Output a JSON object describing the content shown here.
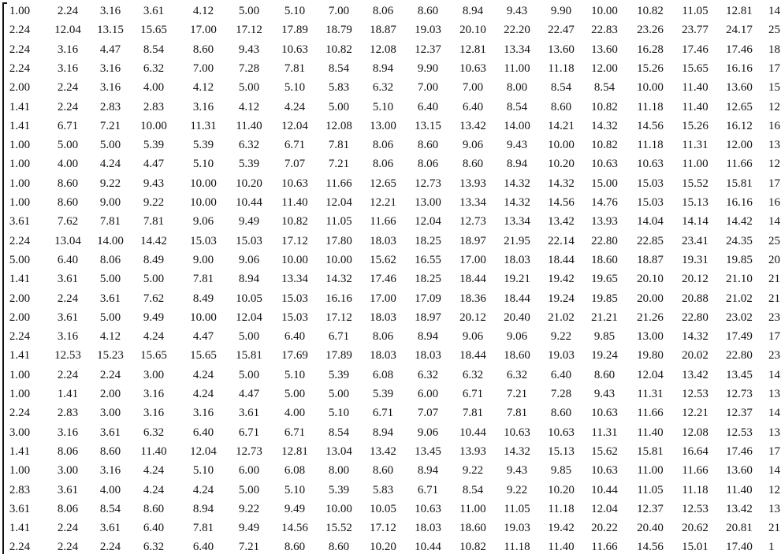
{
  "matrix": {
    "rows": [
      [
        "1.00",
        "2.24",
        "3.16",
        "3.61",
        "4.12",
        "5.00",
        "5.10",
        "7.00",
        "8.06",
        "8.60",
        "8.94",
        "9.43",
        "9.90",
        "10.00",
        "10.82",
        "11.05",
        "12.81",
        "14"
      ],
      [
        "2.24",
        "12.04",
        "13.15",
        "15.65",
        "17.00",
        "17.12",
        "17.89",
        "18.79",
        "18.87",
        "19.03",
        "20.10",
        "22.20",
        "22.47",
        "22.83",
        "23.26",
        "23.77",
        "24.17",
        "25"
      ],
      [
        "2.24",
        "3.16",
        "4.47",
        "8.54",
        "8.60",
        "9.43",
        "10.63",
        "10.82",
        "12.08",
        "12.37",
        "12.81",
        "13.34",
        "13.60",
        "13.60",
        "16.28",
        "17.46",
        "17.46",
        "18"
      ],
      [
        "2.24",
        "3.16",
        "3.16",
        "6.32",
        "7.00",
        "7.28",
        "7.81",
        "8.54",
        "8.94",
        "9.90",
        "10.63",
        "11.00",
        "11.18",
        "12.00",
        "15.26",
        "15.65",
        "16.16",
        "17"
      ],
      [
        "2.00",
        "2.24",
        "3.16",
        "4.00",
        "4.12",
        "5.00",
        "5.10",
        "5.83",
        "6.32",
        "7.00",
        "7.00",
        "8.00",
        "8.54",
        "8.54",
        "10.00",
        "11.40",
        "13.60",
        "15"
      ],
      [
        "1.41",
        "2.24",
        "2.83",
        "2.83",
        "3.16",
        "4.12",
        "4.24",
        "5.00",
        "5.10",
        "6.40",
        "6.40",
        "8.54",
        "8.60",
        "10.82",
        "11.18",
        "11.40",
        "12.65",
        "12"
      ],
      [
        "1.41",
        "6.71",
        "7.21",
        "10.00",
        "11.31",
        "11.40",
        "12.04",
        "12.08",
        "13.00",
        "13.15",
        "13.42",
        "14.00",
        "14.21",
        "14.32",
        "14.56",
        "15.26",
        "16.12",
        "16"
      ],
      [
        "1.00",
        "5.00",
        "5.00",
        "5.39",
        "5.39",
        "6.32",
        "6.71",
        "7.81",
        "8.06",
        "8.60",
        "9.06",
        "9.43",
        "10.00",
        "10.82",
        "11.18",
        "11.31",
        "12.00",
        "13"
      ],
      [
        "1.00",
        "4.00",
        "4.24",
        "4.47",
        "5.10",
        "5.39",
        "7.07",
        "7.21",
        "8.06",
        "8.06",
        "8.60",
        "8.94",
        "10.20",
        "10.63",
        "10.63",
        "11.00",
        "11.66",
        "12"
      ],
      [
        "1.00",
        "8.60",
        "9.22",
        "9.43",
        "10.00",
        "10.20",
        "10.63",
        "11.66",
        "12.65",
        "12.73",
        "13.93",
        "14.32",
        "14.32",
        "15.00",
        "15.03",
        "15.52",
        "15.81",
        "17"
      ],
      [
        "1.00",
        "8.60",
        "9.00",
        "9.22",
        "10.00",
        "10.44",
        "11.40",
        "12.04",
        "12.21",
        "13.00",
        "13.34",
        "14.32",
        "14.56",
        "14.76",
        "15.03",
        "15.13",
        "16.16",
        "16"
      ],
      [
        "3.61",
        "7.62",
        "7.81",
        "7.81",
        "9.06",
        "9.49",
        "10.82",
        "11.05",
        "11.66",
        "12.04",
        "12.73",
        "13.34",
        "13.42",
        "13.93",
        "14.04",
        "14.14",
        "14.42",
        "14"
      ],
      [
        "2.24",
        "13.04",
        "14.00",
        "14.42",
        "15.03",
        "15.03",
        "17.12",
        "17.80",
        "18.03",
        "18.25",
        "18.97",
        "21.95",
        "22.14",
        "22.80",
        "22.85",
        "23.41",
        "24.35",
        "25"
      ],
      [
        "5.00",
        "6.40",
        "8.06",
        "8.49",
        "9.00",
        "9.06",
        "10.00",
        "10.00",
        "15.62",
        "16.55",
        "17.00",
        "18.03",
        "18.44",
        "18.60",
        "18.87",
        "19.31",
        "19.85",
        "20"
      ],
      [
        "1.41",
        "3.61",
        "5.00",
        "5.00",
        "7.81",
        "8.94",
        "13.34",
        "14.32",
        "17.46",
        "18.25",
        "18.44",
        "19.21",
        "19.42",
        "19.65",
        "20.10",
        "20.12",
        "21.10",
        "21"
      ],
      [
        "2.00",
        "2.24",
        "3.61",
        "7.62",
        "8.49",
        "10.05",
        "15.03",
        "16.16",
        "17.00",
        "17.09",
        "18.36",
        "18.44",
        "19.24",
        "19.85",
        "20.00",
        "20.88",
        "21.02",
        "21"
      ],
      [
        "2.00",
        "3.61",
        "5.00",
        "9.49",
        "10.00",
        "12.04",
        "15.03",
        "17.12",
        "18.03",
        "18.97",
        "20.12",
        "20.40",
        "21.02",
        "21.21",
        "21.26",
        "22.80",
        "23.02",
        "23"
      ],
      [
        "2.24",
        "3.16",
        "4.12",
        "4.24",
        "4.47",
        "5.00",
        "6.40",
        "6.71",
        "8.06",
        "8.94",
        "9.06",
        "9.06",
        "9.22",
        "9.85",
        "13.00",
        "14.32",
        "17.49",
        "17"
      ],
      [
        "1.41",
        "12.53",
        "15.23",
        "15.65",
        "15.65",
        "15.81",
        "17.69",
        "17.89",
        "18.03",
        "18.03",
        "18.44",
        "18.60",
        "19.03",
        "19.24",
        "19.80",
        "20.02",
        "22.80",
        "23"
      ],
      [
        "1.00",
        "2.24",
        "2.24",
        "3.00",
        "4.24",
        "5.00",
        "5.10",
        "5.39",
        "6.08",
        "6.32",
        "6.32",
        "6.32",
        "6.40",
        "8.60",
        "12.04",
        "13.42",
        "13.45",
        "14"
      ],
      [
        "1.00",
        "1.41",
        "2.00",
        "3.16",
        "4.24",
        "4.47",
        "5.00",
        "5.00",
        "5.39",
        "6.00",
        "6.71",
        "7.21",
        "7.28",
        "9.43",
        "11.31",
        "12.53",
        "12.73",
        "13"
      ],
      [
        "2.24",
        "2.83",
        "3.00",
        "3.16",
        "3.16",
        "3.61",
        "4.00",
        "5.10",
        "6.71",
        "7.07",
        "7.81",
        "7.81",
        "8.60",
        "10.63",
        "11.66",
        "12.21",
        "12.37",
        "14"
      ],
      [
        "3.00",
        "3.16",
        "3.61",
        "6.32",
        "6.40",
        "6.71",
        "6.71",
        "8.54",
        "8.94",
        "9.06",
        "10.44",
        "10.63",
        "10.63",
        "11.31",
        "11.40",
        "12.08",
        "12.53",
        "13"
      ],
      [
        "1.41",
        "8.06",
        "8.60",
        "11.40",
        "12.04",
        "12.73",
        "12.81",
        "13.04",
        "13.42",
        "13.45",
        "13.93",
        "14.32",
        "15.13",
        "15.62",
        "15.81",
        "16.64",
        "17.46",
        "17"
      ],
      [
        "1.00",
        "3.00",
        "3.16",
        "4.24",
        "5.10",
        "6.00",
        "6.08",
        "8.00",
        "8.60",
        "8.94",
        "9.22",
        "9.43",
        "9.85",
        "10.63",
        "11.00",
        "11.66",
        "13.60",
        "14"
      ],
      [
        "2.83",
        "3.61",
        "4.00",
        "4.24",
        "4.24",
        "5.00",
        "5.10",
        "5.39",
        "5.83",
        "6.71",
        "8.54",
        "9.22",
        "10.20",
        "10.44",
        "11.05",
        "11.18",
        "11.40",
        "12"
      ],
      [
        "3.61",
        "8.06",
        "8.54",
        "8.60",
        "8.94",
        "9.22",
        "9.49",
        "10.00",
        "10.05",
        "10.63",
        "11.00",
        "11.05",
        "11.18",
        "12.04",
        "12.37",
        "12.53",
        "13.42",
        "13"
      ],
      [
        "1.41",
        "2.24",
        "3.61",
        "6.40",
        "7.81",
        "9.49",
        "14.56",
        "15.52",
        "17.12",
        "18.03",
        "18.60",
        "19.03",
        "19.42",
        "20.22",
        "20.40",
        "20.62",
        "20.81",
        "21"
      ],
      [
        "2.24",
        "2.24",
        "2.24",
        "6.32",
        "6.40",
        "7.21",
        "8.60",
        "8.60",
        "10.20",
        "10.44",
        "10.82",
        "11.18",
        "11.40",
        "11.66",
        "14.56",
        "15.01",
        "17.40",
        "1"
      ]
    ]
  }
}
